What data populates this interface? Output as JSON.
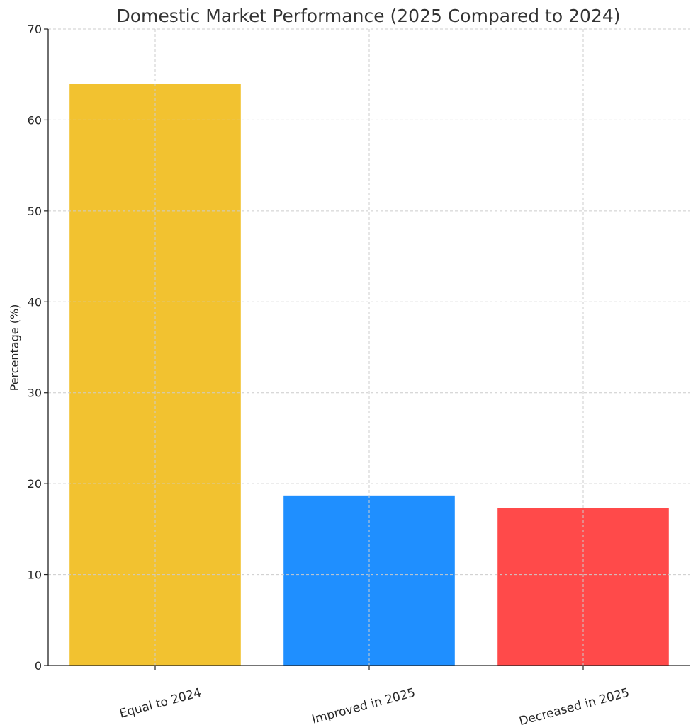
{
  "chart_data": {
    "type": "bar",
    "title": "Domestic Market Performance (2025 Compared to 2024)",
    "xlabel": "",
    "ylabel": "Percentage (%)",
    "ylim": [
      0,
      70
    ],
    "yticks": [
      0,
      10,
      20,
      30,
      40,
      50,
      60,
      70
    ],
    "categories": [
      "Equal to 2024",
      "Improved in 2025",
      "Decreased in 2025"
    ],
    "values": [
      64,
      18.7,
      17.3
    ],
    "colors": [
      "#f2c230",
      "#1f8fff",
      "#ff4a4a"
    ],
    "grid": true,
    "legend": "none"
  }
}
